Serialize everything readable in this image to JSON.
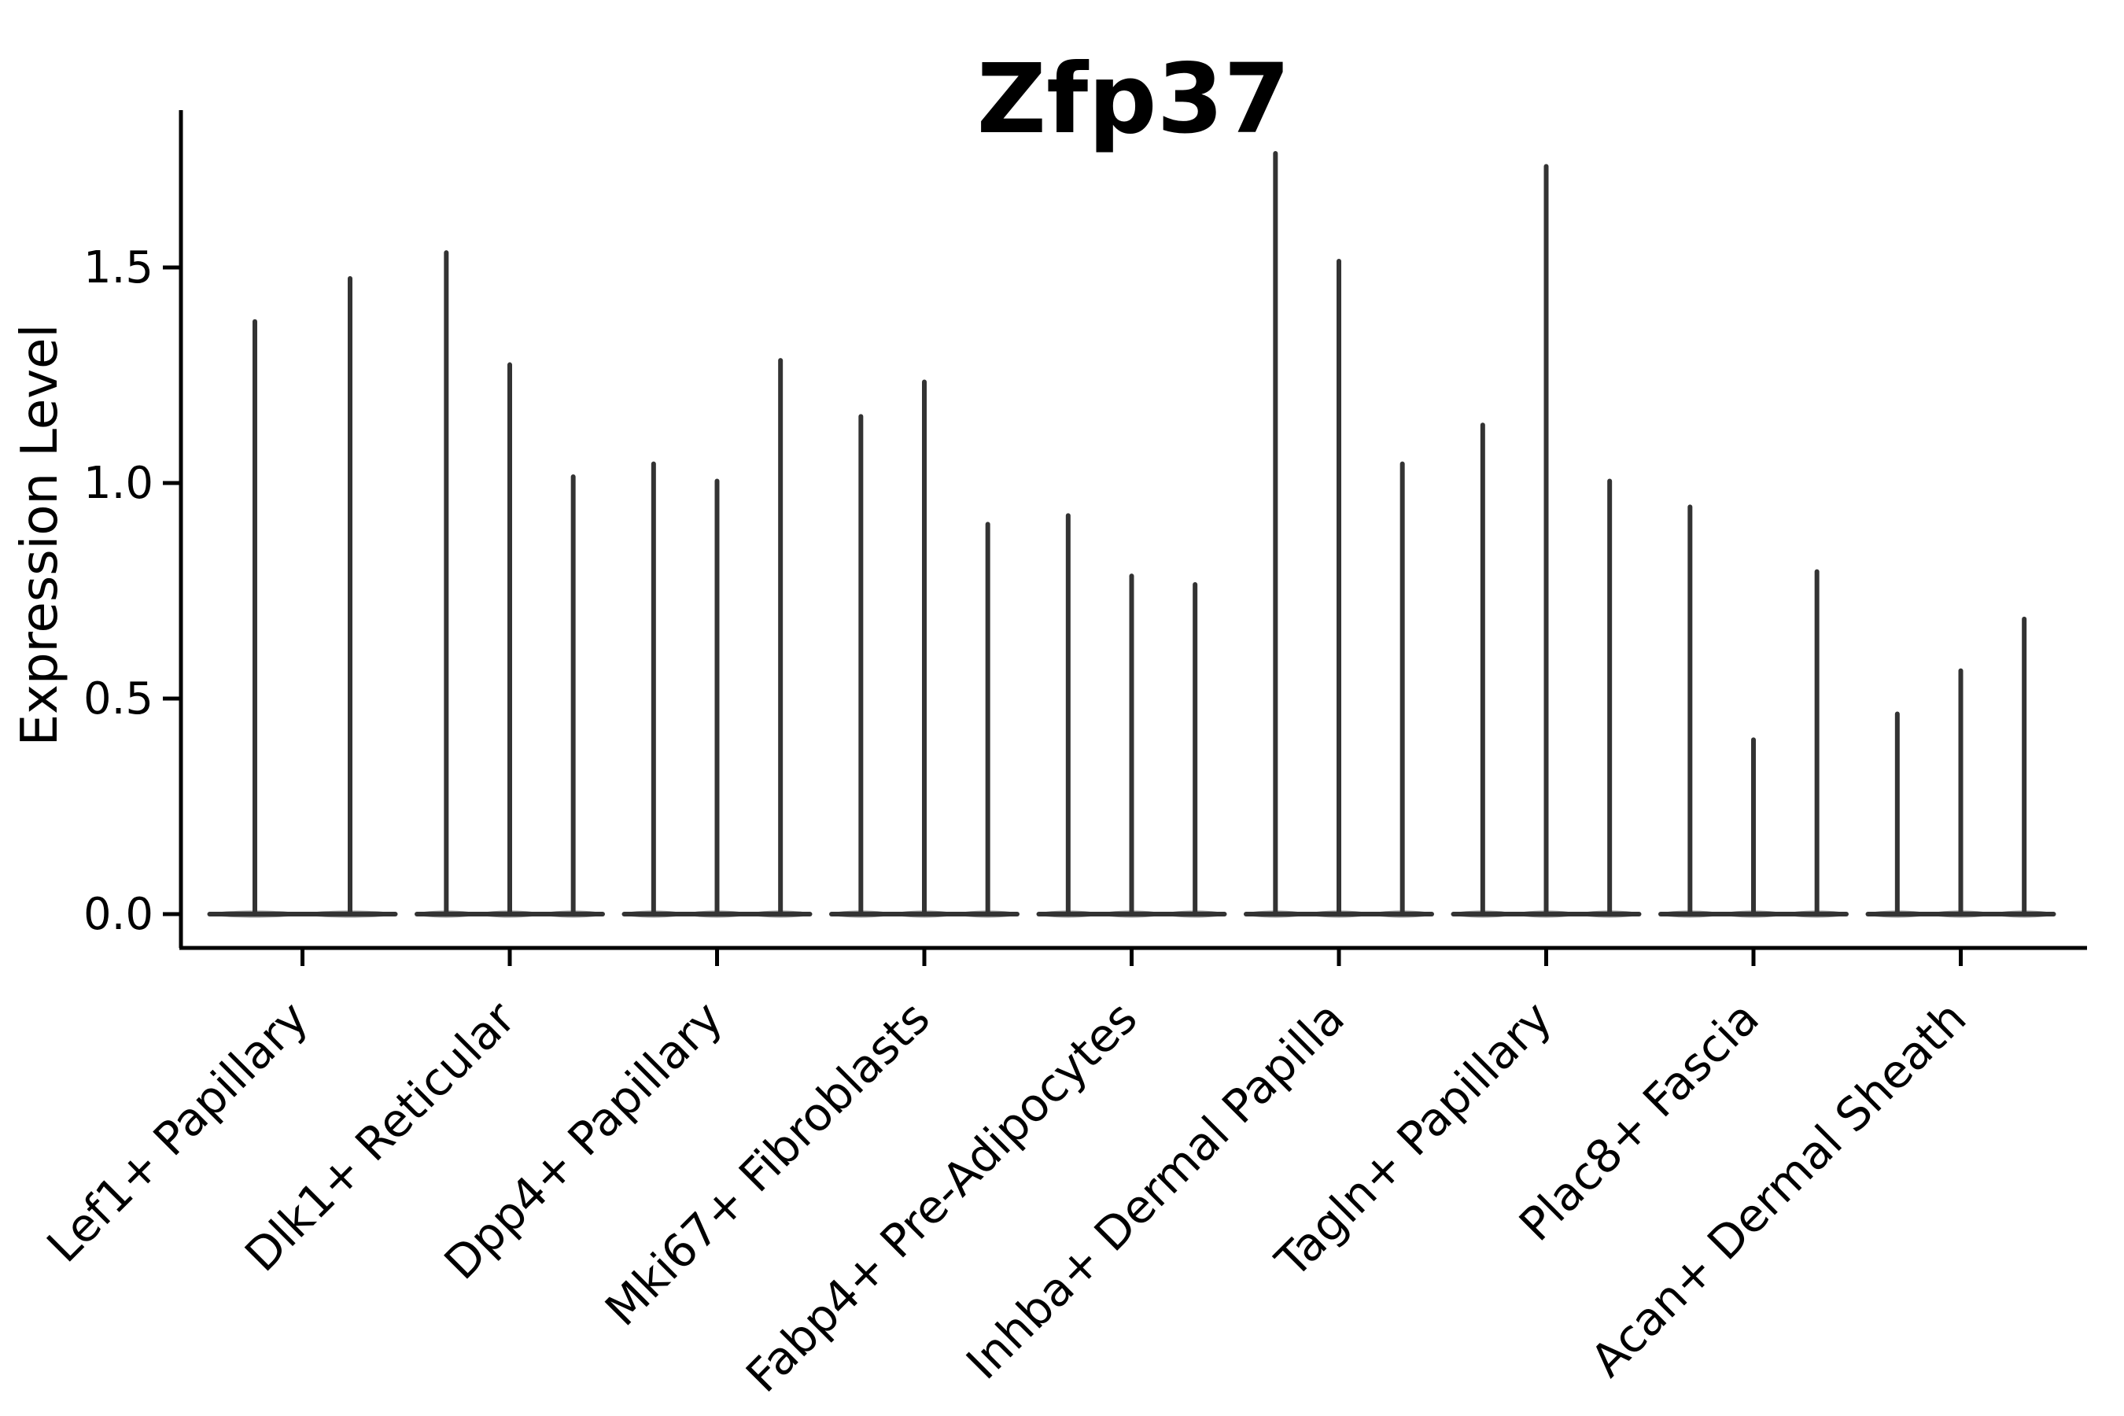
{
  "chart_data": {
    "type": "violin",
    "title": "Zfp37",
    "xlabel": "",
    "ylabel": "Expression Level",
    "yticks": [
      0.0,
      0.5,
      1.0,
      1.5
    ],
    "ytick_labels": [
      "0.0",
      "0.5",
      "1.0",
      "1.5"
    ],
    "ylim": [
      -0.08,
      1.87
    ],
    "grid": false,
    "legend": "none",
    "categories": [
      "Lef1+ Papillary",
      "Dlk1+ Reticular",
      "Dpp4+ Papillary",
      "Mki67+ Fibroblasts",
      "Fabp4+ Pre-Adipocytes",
      "Inhba+ Dermal Papilla",
      "Tagln+ Papillary",
      "Plac8+ Fascia",
      "Acan+ Dermal Sheath"
    ],
    "groups": [
      {
        "category": "Lef1+ Papillary",
        "violin_maxima": [
          1.38,
          1.48
        ]
      },
      {
        "category": "Dlk1+ Reticular",
        "violin_maxima": [
          1.54,
          1.28,
          1.02
        ]
      },
      {
        "category": "Dpp4+ Papillary",
        "violin_maxima": [
          1.05,
          1.01,
          1.29
        ]
      },
      {
        "category": "Mki67+ Fibroblasts",
        "violin_maxima": [
          1.16,
          1.24,
          0.91
        ]
      },
      {
        "category": "Fabp4+ Pre-Adipocytes",
        "violin_maxima": [
          0.93,
          0.79,
          0.77
        ]
      },
      {
        "category": "Inhba+ Dermal Papilla",
        "violin_maxima": [
          1.77,
          1.52,
          1.05
        ]
      },
      {
        "category": "Tagln+ Papillary",
        "violin_maxima": [
          1.14,
          1.74,
          1.01
        ]
      },
      {
        "category": "Plac8+ Fascia",
        "violin_maxima": [
          0.95,
          0.41,
          0.8
        ]
      },
      {
        "category": "Acan+ Dermal Sheath",
        "violin_maxima": [
          0.47,
          0.57,
          0.69
        ]
      }
    ],
    "violin_shape_note": "each violin is a flat wide body at expression 0 with a thin spike rising to its maximum",
    "colors": {
      "violin": "#333333",
      "axis": "#000000",
      "text": "#000000",
      "background": "#ffffff"
    }
  }
}
